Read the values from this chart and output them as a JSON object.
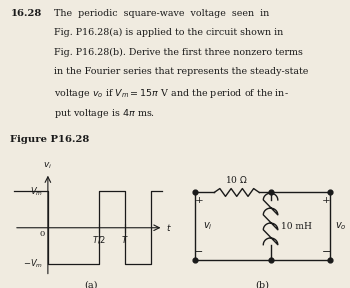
{
  "bg_color": "#f0ebe0",
  "text_color": "#1a1a1a",
  "problem_number": "16.28",
  "problem_text_lines": [
    "The  periodic  square-wave  voltage  seen  in",
    "Fig. P16.28(a) is applied to the circuit shown in",
    "Fig. P16.28(b). Derive the first three nonzero terms",
    "in the Fourier series that represents the steady-state",
    "voltage $v_o$ if $V_m = 15\\pi$ V and the period of the in-",
    "put voltage is $4\\pi$ ms."
  ],
  "figure_label": "Figure P16.28",
  "subplot_a_label": "(a)",
  "subplot_b_label": "(b)",
  "wave_color": "#1a1a1a",
  "circuit_color": "#1a1a1a"
}
